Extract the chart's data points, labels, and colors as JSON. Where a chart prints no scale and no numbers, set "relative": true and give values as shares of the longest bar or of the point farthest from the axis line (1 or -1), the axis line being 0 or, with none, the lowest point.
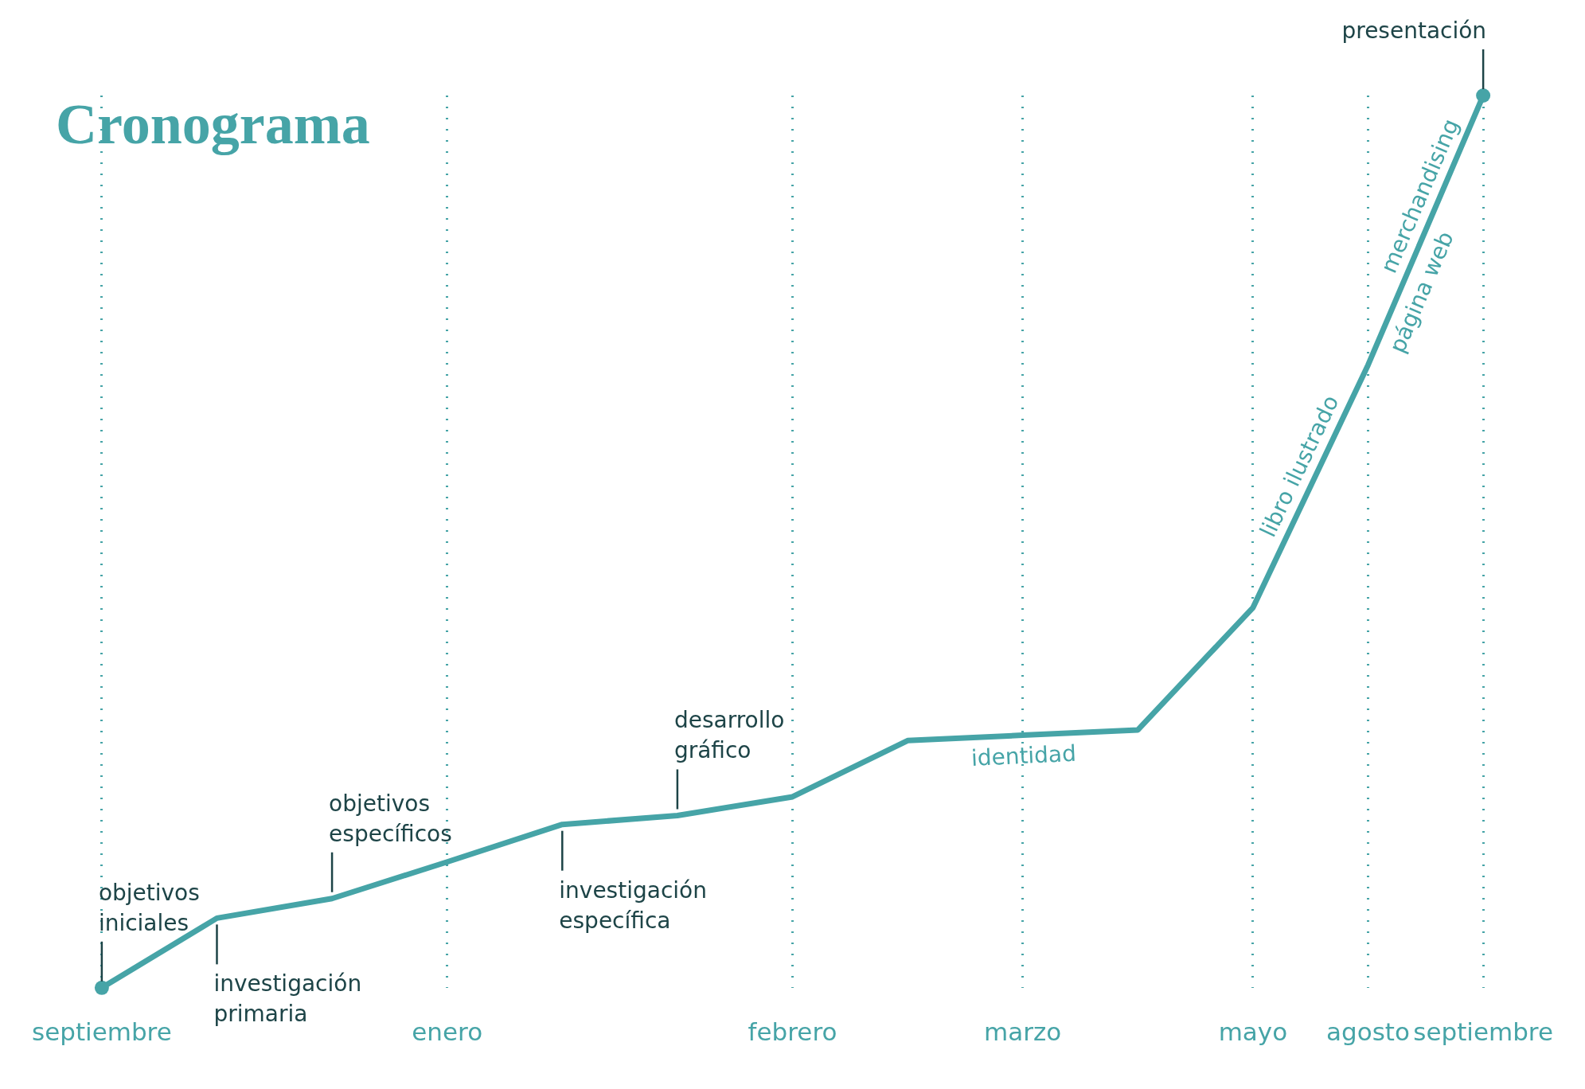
{
  "chart_data": {
    "type": "line",
    "title": "Cronograma",
    "relative": true,
    "categories": [
      "septiembre",
      null,
      null,
      "enero",
      null,
      null,
      "febrero",
      null,
      "marzo",
      null,
      "mayo",
      "agosto",
      "septiembre"
    ],
    "series": [
      {
        "color": "#46a4a7",
        "values": [
          0,
          0.078,
          0.1,
          0.141,
          0.183,
          0.193,
          0.214,
          0.277,
          0.283,
          0.289,
          0.426,
          0.698,
          1
        ]
      }
    ],
    "grid": "x",
    "legend": false,
    "line_style": "solid",
    "annotations": [
      "objetivos\niniciales",
      "investigación\nprimaria",
      "objetivos\nespecíficos",
      "investigación\nespecífica",
      "desarrollo\ngráfico",
      "identidad",
      "libro ilustrado",
      "página web",
      "merchandising",
      "presentación"
    ]
  }
}
